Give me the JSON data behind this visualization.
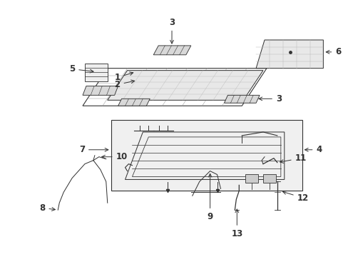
{
  "background_color": "#ffffff",
  "fig_width": 4.89,
  "fig_height": 3.6,
  "dpi": 100,
  "color": "#333333",
  "lw": 0.8
}
